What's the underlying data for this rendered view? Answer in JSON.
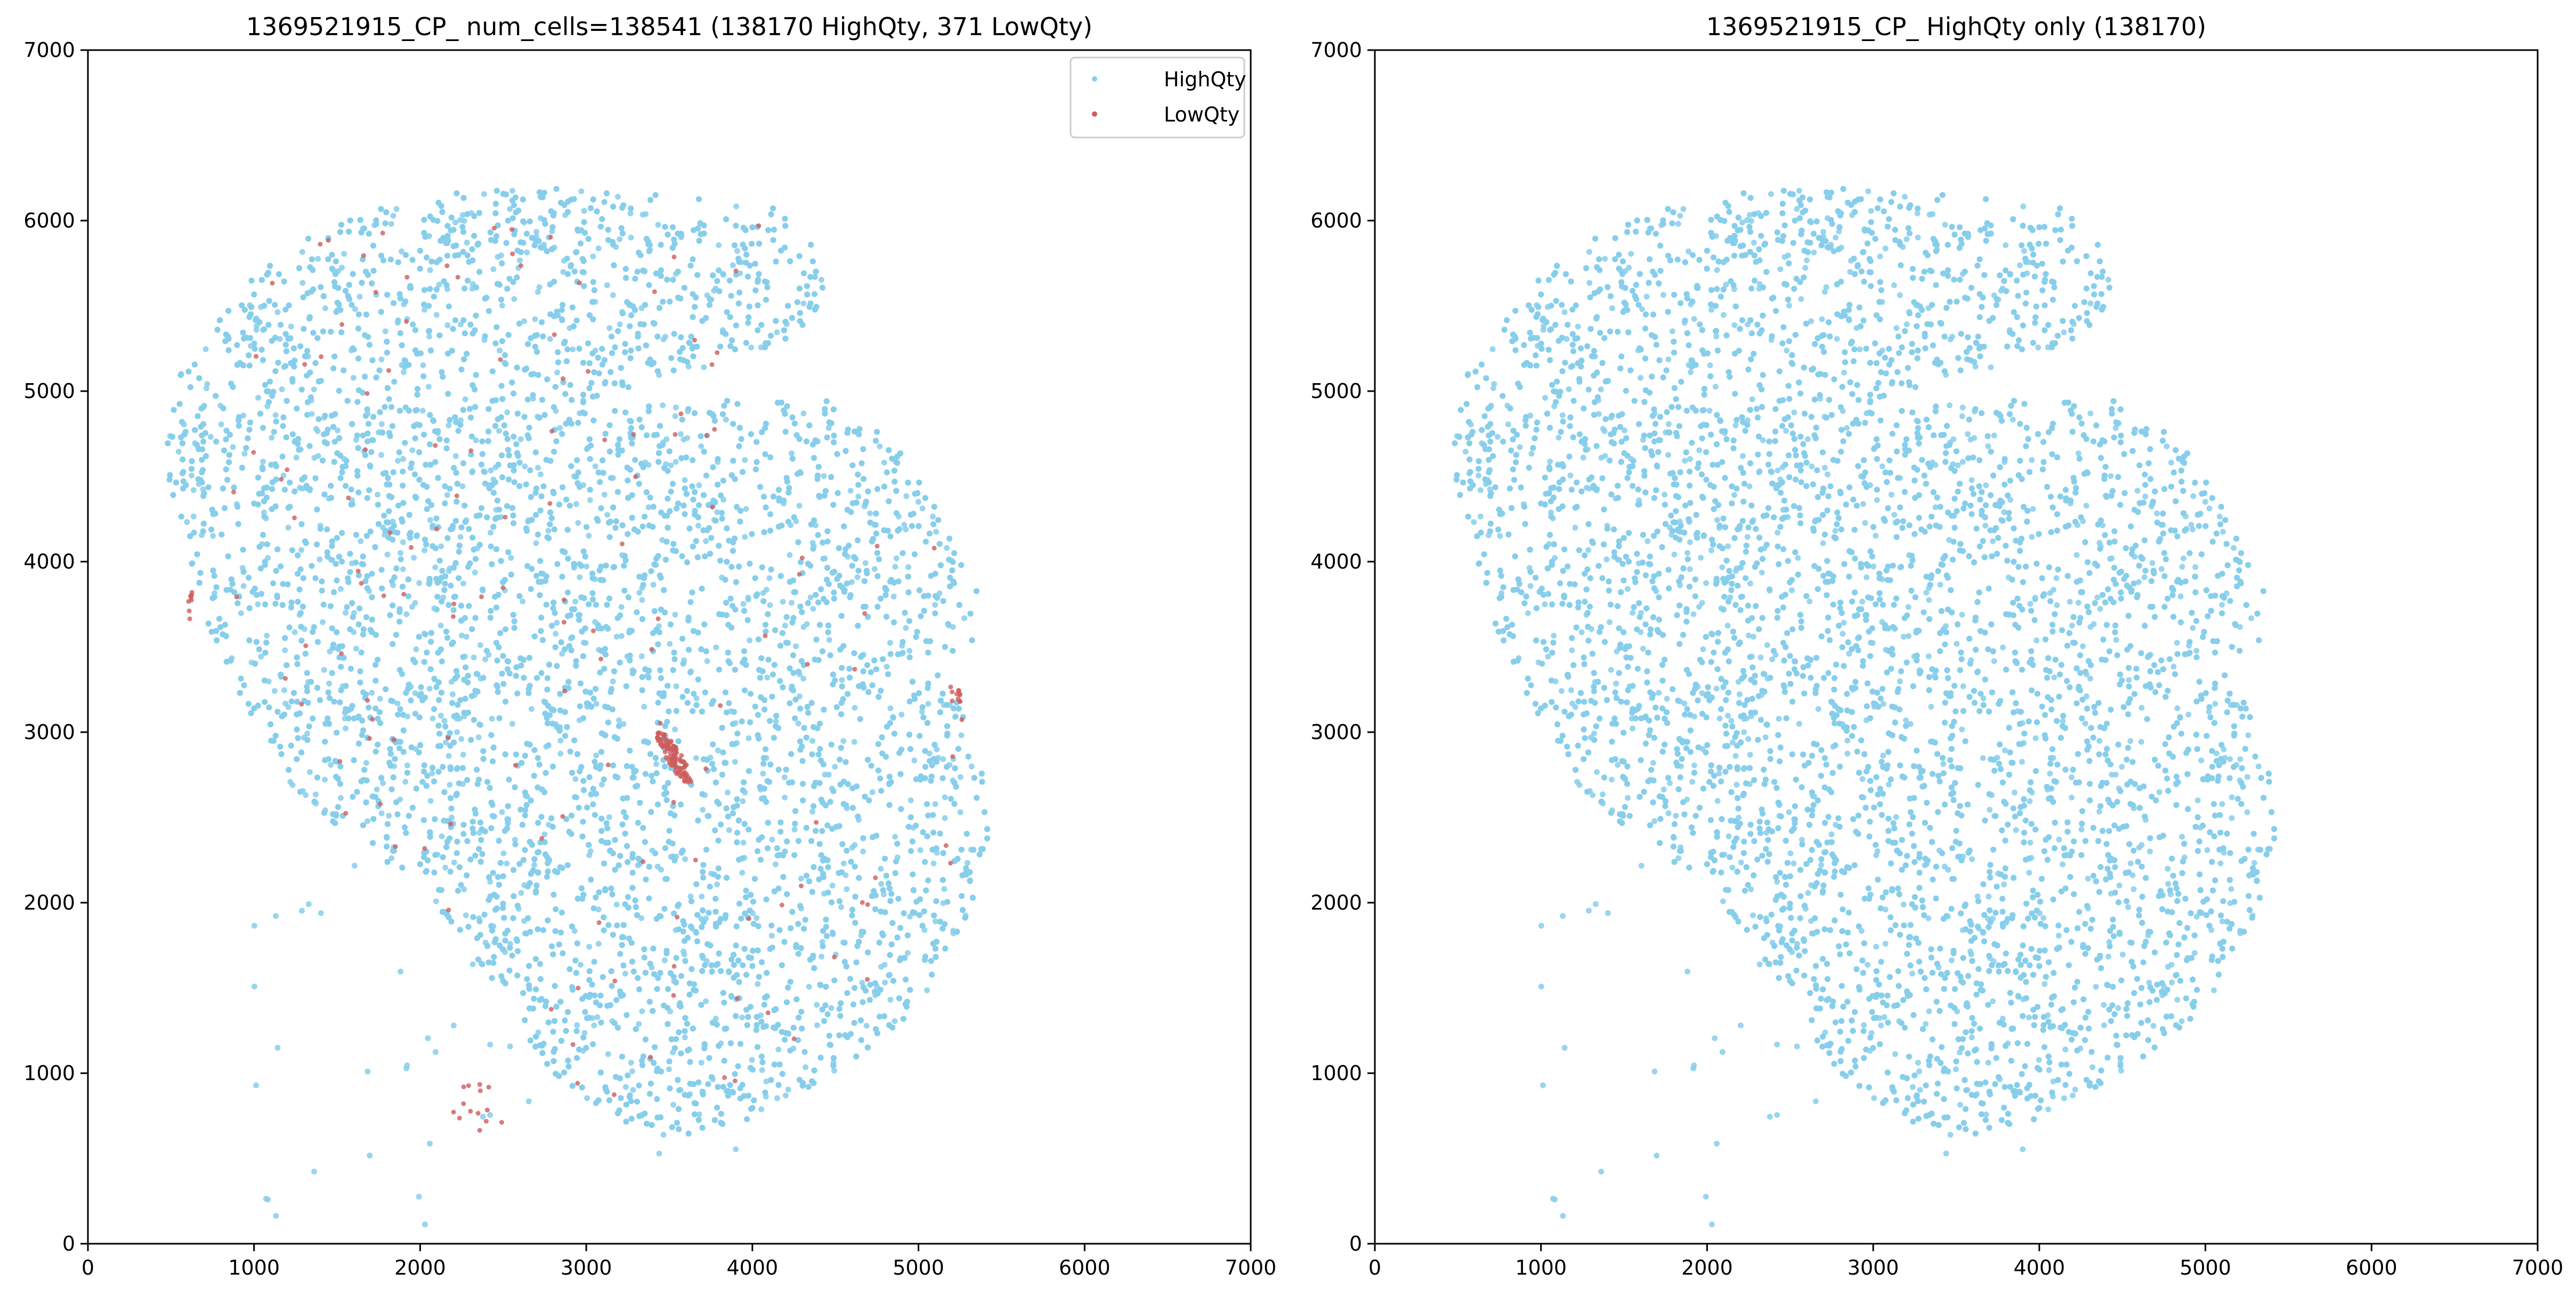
{
  "chart_data": [
    {
      "type": "scatter",
      "title": "1369521915_CP_ num_cells=138541 (138170 HighQty, 371 LowQty)",
      "xlabel": "",
      "ylabel": "",
      "xlim": [
        0,
        7000
      ],
      "ylim": [
        0,
        7000
      ],
      "xticks": [
        "0",
        "1000",
        "2000",
        "3000",
        "4000",
        "5000",
        "6000",
        "7000"
      ],
      "yticks": [
        "0",
        "1000",
        "2000",
        "3000",
        "4000",
        "5000",
        "6000",
        "7000"
      ],
      "grid": false,
      "legend": {
        "placement": "top-right",
        "entries": [
          "HighQty",
          "LowQty"
        ]
      },
      "series": [
        {
          "name": "HighQty",
          "color": "#87ceeb",
          "count": 138170
        },
        {
          "name": "LowQty",
          "color": "#cd5c5c",
          "count": 371
        }
      ]
    },
    {
      "type": "scatter",
      "title": "1369521915_CP_ HighQty only (138170)",
      "xlabel": "",
      "ylabel": "",
      "xlim": [
        0,
        7000
      ],
      "ylim": [
        0,
        7000
      ],
      "xticks": [
        "0",
        "1000",
        "2000",
        "3000",
        "4000",
        "5000",
        "6000",
        "7000"
      ],
      "yticks": [
        "0",
        "1000",
        "2000",
        "3000",
        "4000",
        "5000",
        "6000",
        "7000"
      ],
      "grid": false,
      "series": [
        {
          "name": "HighQty",
          "color": "#87ceeb",
          "count": 138170
        }
      ]
    }
  ]
}
